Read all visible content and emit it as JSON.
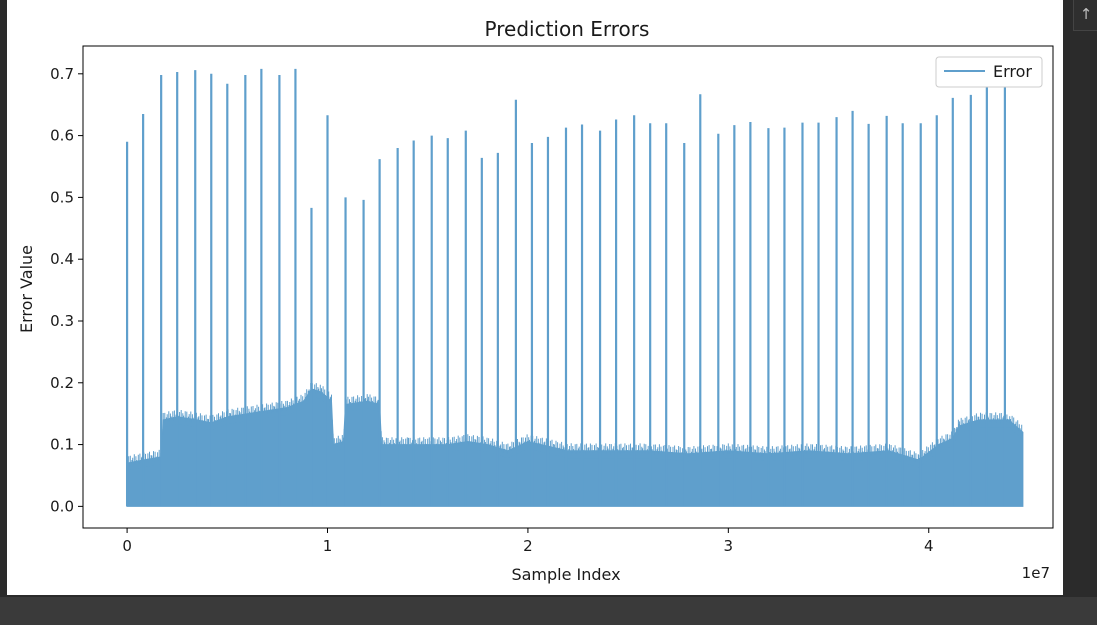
{
  "chart_data": {
    "type": "line",
    "title": "Prediction Errors",
    "xlabel": "Sample Index",
    "ylabel": "Error Value",
    "x_offset_text": "1e7",
    "xlim": [
      -0.22,
      4.62
    ],
    "ylim": [
      -0.035,
      0.745
    ],
    "x_ticks": [
      0,
      1,
      2,
      3,
      4
    ],
    "x_tick_labels": [
      "0",
      "1",
      "2",
      "3",
      "4"
    ],
    "y_ticks": [
      0.0,
      0.1,
      0.2,
      0.3,
      0.4,
      0.5,
      0.6,
      0.7
    ],
    "y_tick_labels": [
      "0.0",
      "0.1",
      "0.2",
      "0.3",
      "0.4",
      "0.5",
      "0.6",
      "0.7"
    ],
    "legend": {
      "placement": "top-right",
      "entries": [
        "Error"
      ]
    },
    "grid": false,
    "series": [
      {
        "name": "Error",
        "color": "#5f9fcc",
        "x_scale": "1e7",
        "baseline": 0.0,
        "envelope": [
          [
            0.0,
            0.07
          ],
          [
            0.08,
            0.075
          ],
          [
            0.17,
            0.08
          ],
          [
            0.18,
            0.14
          ],
          [
            0.25,
            0.145
          ],
          [
            0.35,
            0.14
          ],
          [
            0.42,
            0.135
          ],
          [
            0.5,
            0.145
          ],
          [
            0.6,
            0.15
          ],
          [
            0.7,
            0.155
          ],
          [
            0.8,
            0.16
          ],
          [
            0.88,
            0.17
          ],
          [
            0.92,
            0.19
          ],
          [
            0.97,
            0.185
          ],
          [
            1.02,
            0.17
          ],
          [
            1.03,
            0.1
          ],
          [
            1.08,
            0.105
          ],
          [
            1.09,
            0.165
          ],
          [
            1.2,
            0.17
          ],
          [
            1.26,
            0.165
          ],
          [
            1.27,
            0.1
          ],
          [
            1.4,
            0.1
          ],
          [
            1.6,
            0.1
          ],
          [
            1.7,
            0.105
          ],
          [
            1.8,
            0.1
          ],
          [
            1.9,
            0.09
          ],
          [
            2.0,
            0.105
          ],
          [
            2.2,
            0.09
          ],
          [
            2.4,
            0.09
          ],
          [
            2.6,
            0.09
          ],
          [
            2.8,
            0.085
          ],
          [
            3.0,
            0.09
          ],
          [
            3.2,
            0.085
          ],
          [
            3.4,
            0.09
          ],
          [
            3.6,
            0.085
          ],
          [
            3.8,
            0.09
          ],
          [
            3.95,
            0.075
          ],
          [
            4.05,
            0.1
          ],
          [
            4.12,
            0.11
          ],
          [
            4.15,
            0.13
          ],
          [
            4.25,
            0.14
          ],
          [
            4.4,
            0.14
          ],
          [
            4.47,
            0.12
          ]
        ],
        "spikes": [
          [
            0.0,
            0.59
          ],
          [
            0.08,
            0.635
          ],
          [
            0.17,
            0.698
          ],
          [
            0.25,
            0.703
          ],
          [
            0.34,
            0.706
          ],
          [
            0.42,
            0.7
          ],
          [
            0.5,
            0.684
          ],
          [
            0.59,
            0.698
          ],
          [
            0.67,
            0.708
          ],
          [
            0.76,
            0.698
          ],
          [
            0.84,
            0.708
          ],
          [
            0.92,
            0.483
          ],
          [
            1.0,
            0.633
          ],
          [
            1.09,
            0.5
          ],
          [
            1.18,
            0.496
          ],
          [
            1.26,
            0.562
          ],
          [
            1.35,
            0.58
          ],
          [
            1.43,
            0.592
          ],
          [
            1.52,
            0.6
          ],
          [
            1.6,
            0.596
          ],
          [
            1.69,
            0.608
          ],
          [
            1.77,
            0.564
          ],
          [
            1.85,
            0.572
          ],
          [
            1.94,
            0.658
          ],
          [
            2.02,
            0.588
          ],
          [
            2.1,
            0.598
          ],
          [
            2.19,
            0.613
          ],
          [
            2.27,
            0.618
          ],
          [
            2.36,
            0.608
          ],
          [
            2.44,
            0.626
          ],
          [
            2.53,
            0.633
          ],
          [
            2.61,
            0.62
          ],
          [
            2.69,
            0.62
          ],
          [
            2.78,
            0.588
          ],
          [
            2.86,
            0.667
          ],
          [
            2.95,
            0.603
          ],
          [
            3.03,
            0.617
          ],
          [
            3.11,
            0.622
          ],
          [
            3.2,
            0.612
          ],
          [
            3.28,
            0.613
          ],
          [
            3.37,
            0.621
          ],
          [
            3.45,
            0.621
          ],
          [
            3.54,
            0.63
          ],
          [
            3.62,
            0.64
          ],
          [
            3.7,
            0.619
          ],
          [
            3.79,
            0.632
          ],
          [
            3.87,
            0.62
          ],
          [
            3.96,
            0.62
          ],
          [
            4.04,
            0.633
          ],
          [
            4.12,
            0.661
          ],
          [
            4.21,
            0.666
          ],
          [
            4.29,
            0.683
          ],
          [
            4.38,
            0.69
          ]
        ]
      }
    ]
  },
  "ui": {
    "scroll_up_label": "↑"
  }
}
